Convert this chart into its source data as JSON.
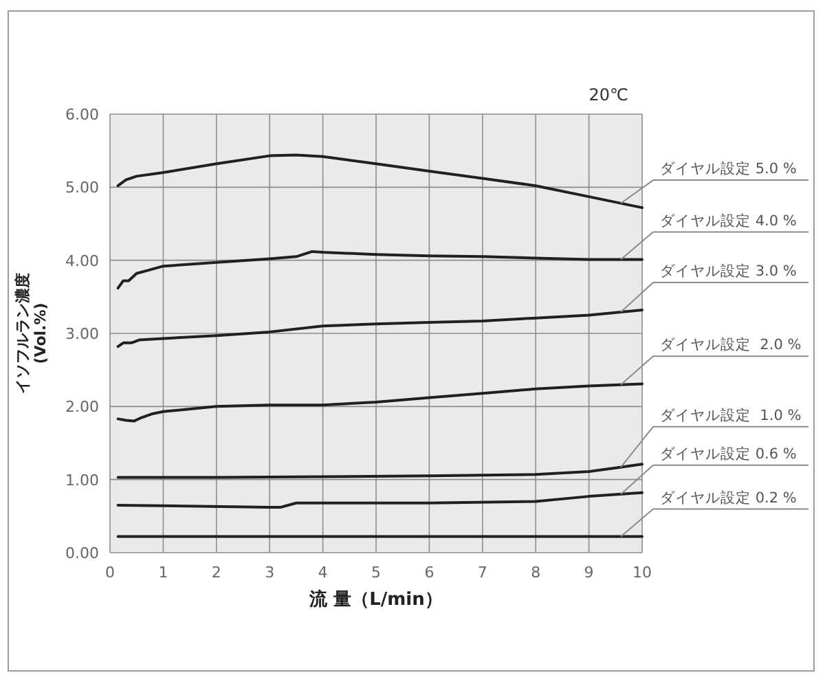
{
  "chart_data": {
    "type": "line",
    "xlabel": "流 量（L/min）",
    "ylabel": "イソフルラン濃度 (Vol.%)",
    "annotations": [
      "20℃"
    ],
    "xlim": [
      0,
      10
    ],
    "ylim": [
      0,
      6
    ],
    "xticks": [
      0,
      1,
      2,
      3,
      4,
      5,
      6,
      7,
      8,
      9,
      10
    ],
    "yticks": [
      {
        "value": 0,
        "label": "0.00"
      },
      {
        "value": 1,
        "label": "1.00"
      },
      {
        "value": 2,
        "label": "2.00"
      },
      {
        "value": 3,
        "label": "3.00"
      },
      {
        "value": 4,
        "label": "4.00"
      },
      {
        "value": 5,
        "label": "5.00"
      },
      {
        "value": 6,
        "label": "6.00"
      }
    ],
    "grid": true,
    "legend": "right",
    "marker": "none",
    "line_style": "solid",
    "series": [
      {
        "name": "ダイヤル設定 5.0 %",
        "color": "#231f20",
        "x": [
          0.15,
          0.3,
          0.5,
          1,
          2,
          3,
          3.5,
          4,
          5,
          6,
          7,
          8,
          9,
          10
        ],
        "values": [
          5.02,
          5.1,
          5.15,
          5.2,
          5.32,
          5.43,
          5.44,
          5.42,
          5.32,
          5.22,
          5.12,
          5.02,
          4.87,
          4.72
        ]
      },
      {
        "name": "ダイヤル設定 4.0 %",
        "color": "#231f20",
        "x": [
          0.15,
          0.25,
          0.35,
          0.5,
          0.7,
          1,
          2,
          3,
          3.5,
          3.8,
          4,
          5,
          6,
          7,
          8,
          9,
          9.5,
          10
        ],
        "values": [
          3.62,
          3.72,
          3.72,
          3.82,
          3.86,
          3.92,
          3.97,
          4.02,
          4.05,
          4.12,
          4.11,
          4.08,
          4.06,
          4.05,
          4.03,
          4.01,
          4.01,
          4.01
        ]
      },
      {
        "name": "ダイヤル設定 3.0 %",
        "color": "#231f20",
        "x": [
          0.15,
          0.25,
          0.4,
          0.55,
          1,
          2,
          3,
          4,
          5,
          6,
          7,
          8,
          9,
          10
        ],
        "values": [
          2.82,
          2.87,
          2.87,
          2.91,
          2.93,
          2.97,
          3.02,
          3.1,
          3.13,
          3.15,
          3.17,
          3.21,
          3.25,
          3.32
        ]
      },
      {
        "name": "ダイヤル設定  2.0 %",
        "color": "#231f20",
        "x": [
          0.15,
          0.3,
          0.45,
          0.6,
          0.8,
          1,
          2,
          3,
          4,
          5,
          6,
          7,
          8,
          9,
          10
        ],
        "values": [
          1.83,
          1.81,
          1.8,
          1.85,
          1.9,
          1.93,
          2.0,
          2.02,
          2.02,
          2.06,
          2.12,
          2.18,
          2.24,
          2.28,
          2.31
        ]
      },
      {
        "name": "ダイヤル設定  1.0 %",
        "color": "#231f20",
        "x": [
          0.15,
          2,
          4,
          6,
          8,
          9,
          9.5,
          10
        ],
        "values": [
          1.03,
          1.03,
          1.04,
          1.05,
          1.07,
          1.11,
          1.16,
          1.21
        ]
      },
      {
        "name": "ダイヤル設定 0.6 %",
        "color": "#231f20",
        "x": [
          0.15,
          3,
          3.2,
          3.5,
          5,
          6,
          8,
          9,
          10
        ],
        "values": [
          0.65,
          0.62,
          0.62,
          0.68,
          0.68,
          0.68,
          0.7,
          0.77,
          0.82
        ]
      },
      {
        "name": "ダイヤル設定 0.2 %",
        "color": "#231f20",
        "x": [
          0.15,
          10
        ],
        "values": [
          0.22,
          0.22
        ]
      }
    ]
  }
}
